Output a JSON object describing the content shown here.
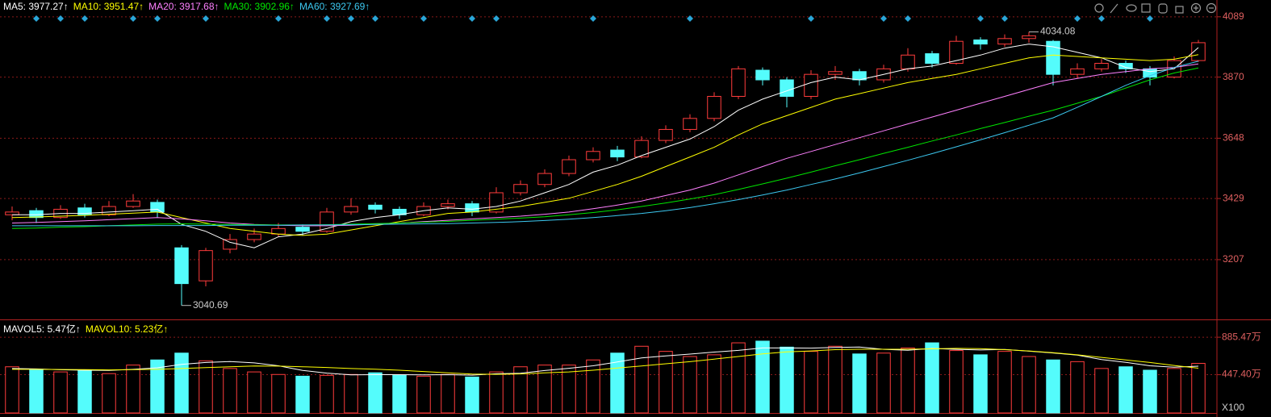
{
  "chart_data": [
    {
      "type": "candlestick",
      "ylim": [
        2990,
        4150
      ],
      "yticks": [
        3207,
        3429,
        3648,
        3870,
        4089
      ],
      "grid": true,
      "up_color": "#ff3c3c",
      "down_color": "#54fcfc",
      "ohlc": [
        [
          3370,
          3400,
          3350,
          3380
        ],
        [
          3385,
          3395,
          3340,
          3360
        ],
        [
          3360,
          3405,
          3355,
          3390
        ],
        [
          3395,
          3410,
          3360,
          3370
        ],
        [
          3370,
          3420,
          3365,
          3400
        ],
        [
          3400,
          3445,
          3395,
          3420
        ],
        [
          3415,
          3425,
          3360,
          3380
        ],
        [
          3250,
          3260,
          3040.69,
          3120
        ],
        [
          3130,
          3250,
          3110,
          3240
        ],
        [
          3245,
          3300,
          3230,
          3280
        ],
        [
          3280,
          3320,
          3270,
          3300
        ],
        [
          3300,
          3340,
          3290,
          3320
        ],
        [
          3325,
          3335,
          3295,
          3310
        ],
        [
          3310,
          3395,
          3305,
          3380
        ],
        [
          3380,
          3430,
          3370,
          3400
        ],
        [
          3405,
          3415,
          3375,
          3390
        ],
        [
          3390,
          3400,
          3355,
          3370
        ],
        [
          3370,
          3415,
          3365,
          3400
        ],
        [
          3400,
          3425,
          3390,
          3410
        ],
        [
          3410,
          3420,
          3365,
          3380
        ],
        [
          3380,
          3470,
          3375,
          3450
        ],
        [
          3450,
          3495,
          3440,
          3480
        ],
        [
          3480,
          3535,
          3470,
          3520
        ],
        [
          3520,
          3585,
          3510,
          3570
        ],
        [
          3570,
          3615,
          3560,
          3600
        ],
        [
          3605,
          3620,
          3565,
          3580
        ],
        [
          3580,
          3655,
          3575,
          3640
        ],
        [
          3640,
          3695,
          3630,
          3680
        ],
        [
          3680,
          3735,
          3670,
          3720
        ],
        [
          3720,
          3815,
          3710,
          3800
        ],
        [
          3800,
          3910,
          3790,
          3900
        ],
        [
          3895,
          3905,
          3840,
          3860
        ],
        [
          3860,
          3870,
          3760,
          3800
        ],
        [
          3800,
          3895,
          3790,
          3880
        ],
        [
          3880,
          3910,
          3860,
          3890
        ],
        [
          3890,
          3900,
          3840,
          3860
        ],
        [
          3860,
          3915,
          3850,
          3900
        ],
        [
          3900,
          3975,
          3890,
          3950
        ],
        [
          3955,
          3965,
          3905,
          3920
        ],
        [
          3920,
          4020,
          3915,
          4000
        ],
        [
          4005,
          4015,
          3970,
          3990
        ],
        [
          3990,
          4025,
          3980,
          4010
        ],
        [
          4010,
          4034.08,
          3995,
          4020
        ],
        [
          4000,
          4005,
          3840,
          3880
        ],
        [
          3880,
          3920,
          3865,
          3900
        ],
        [
          3900,
          3935,
          3890,
          3920
        ],
        [
          3920,
          3930,
          3885,
          3900
        ],
        [
          3900,
          3910,
          3840,
          3870
        ],
        [
          3870,
          3945,
          3865,
          3930
        ],
        [
          3930,
          4005,
          3925,
          3995
        ]
      ],
      "signals": [
        1,
        2,
        3,
        5,
        6,
        8,
        11,
        13,
        14,
        15,
        17,
        19,
        20,
        24,
        28,
        33,
        36,
        37,
        40,
        41,
        44,
        45,
        47
      ],
      "signal_color": "#2aa6d8",
      "series": [
        {
          "name": "MA5: 3977.27↑",
          "color": "#ffffff",
          "values": [
            3370,
            3370,
            3375,
            3375,
            3380,
            3385,
            3390,
            3335,
            3310,
            3270,
            3250,
            3290,
            3300,
            3320,
            3345,
            3360,
            3370,
            3385,
            3395,
            3390,
            3400,
            3420,
            3450,
            3480,
            3525,
            3550,
            3585,
            3615,
            3645,
            3690,
            3750,
            3790,
            3820,
            3850,
            3870,
            3860,
            3880,
            3900,
            3910,
            3930,
            3950,
            3975,
            3990,
            3980,
            3960,
            3940,
            3905,
            3890,
            3900,
            3977.27
          ]
        },
        {
          "name": "MA10: 3951.47↑",
          "color": "#ffff00",
          "values": [
            3360,
            3362,
            3365,
            3368,
            3372,
            3376,
            3380,
            3360,
            3340,
            3320,
            3310,
            3300,
            3295,
            3300,
            3315,
            3330,
            3345,
            3360,
            3375,
            3380,
            3390,
            3400,
            3415,
            3430,
            3455,
            3480,
            3510,
            3545,
            3580,
            3615,
            3660,
            3700,
            3730,
            3760,
            3790,
            3810,
            3830,
            3850,
            3865,
            3880,
            3900,
            3920,
            3940,
            3950,
            3945,
            3940,
            3935,
            3930,
            3935,
            3951.47
          ]
        },
        {
          "name": "MA20: 3917.68↑",
          "color": "#ff80ff",
          "values": [
            3340,
            3342,
            3345,
            3348,
            3352,
            3356,
            3360,
            3355,
            3348,
            3340,
            3335,
            3332,
            3330,
            3330,
            3332,
            3336,
            3340,
            3345,
            3350,
            3355,
            3360,
            3365,
            3372,
            3380,
            3392,
            3405,
            3420,
            3440,
            3460,
            3485,
            3515,
            3545,
            3575,
            3600,
            3625,
            3650,
            3675,
            3700,
            3725,
            3750,
            3775,
            3800,
            3825,
            3850,
            3865,
            3880,
            3890,
            3900,
            3905,
            3917.68
          ]
        },
        {
          "name": "MA30: 3902.96↑",
          "color": "#00e600",
          "values": [
            3320,
            3322,
            3325,
            3327,
            3330,
            3333,
            3336,
            3337,
            3336,
            3335,
            3334,
            3333,
            3333,
            3334,
            3336,
            3338,
            3340,
            3343,
            3346,
            3350,
            3354,
            3358,
            3363,
            3370,
            3378,
            3388,
            3400,
            3413,
            3427,
            3443,
            3462,
            3482,
            3503,
            3525,
            3548,
            3570,
            3593,
            3615,
            3638,
            3660,
            3683,
            3705,
            3728,
            3750,
            3775,
            3800,
            3830,
            3860,
            3885,
            3902.96
          ]
        },
        {
          "name": "MA60: 3927.69↑",
          "color": "#3cc8f0",
          "values": [
            3330,
            3330,
            3330,
            3330,
            3330,
            3330,
            3331,
            3331,
            3331,
            3332,
            3332,
            3332,
            3333,
            3333,
            3334,
            3335,
            3336,
            3337,
            3338,
            3340,
            3342,
            3345,
            3349,
            3354,
            3360,
            3367,
            3375,
            3385,
            3396,
            3410,
            3425,
            3442,
            3460,
            3480,
            3500,
            3522,
            3545,
            3568,
            3592,
            3617,
            3642,
            3668,
            3695,
            3722,
            3760,
            3800,
            3840,
            3875,
            3905,
            3927.69
          ]
        }
      ]
    },
    {
      "type": "volume",
      "ylim": [
        0,
        1075
      ],
      "yticks": [
        {
          "value": 885.47,
          "label": "885.47万"
        },
        {
          "value": 447.4,
          "label": "447.40万"
        }
      ],
      "unit_label": "X100",
      "values": [
        540,
        510,
        480,
        500,
        460,
        560,
        620,
        700,
        610,
        520,
        480,
        450,
        430,
        440,
        450,
        470,
        440,
        430,
        450,
        420,
        480,
        540,
        560,
        560,
        620,
        700,
        780,
        720,
        660,
        680,
        820,
        840,
        770,
        720,
        780,
        690,
        700,
        760,
        820,
        730,
        680,
        720,
        660,
        620,
        600,
        520,
        540,
        500,
        520,
        580
      ],
      "series": [
        {
          "name": "MAVOL5: 5.47亿↑",
          "color": "#ffffff",
          "values": [
            520,
            515,
            505,
            500,
            498,
            510,
            528,
            568,
            590,
            602,
            586,
            552,
            498,
            466,
            446,
            448,
            448,
            446,
            448,
            442,
            458,
            464,
            496,
            522,
            552,
            596,
            644,
            668,
            688,
            712,
            732,
            760,
            760,
            758,
            766,
            770,
            744,
            734,
            754,
            744,
            736,
            742,
            722,
            702,
            676,
            624,
            592,
            552,
            536,
            547
          ]
        },
        {
          "name": "MAVOL10: 5.23亿↑",
          "color": "#ffff00",
          "values": [
            510,
            510,
            508,
            506,
            504,
            506,
            510,
            520,
            530,
            540,
            550,
            548,
            540,
            532,
            520,
            512,
            500,
            485,
            470,
            455,
            452,
            456,
            470,
            480,
            500,
            525,
            550,
            575,
            600,
            630,
            660,
            690,
            715,
            725,
            740,
            745,
            745,
            745,
            750,
            755,
            752,
            740,
            725,
            705,
            680,
            650,
            620,
            590,
            555,
            523
          ]
        }
      ]
    }
  ]
}
